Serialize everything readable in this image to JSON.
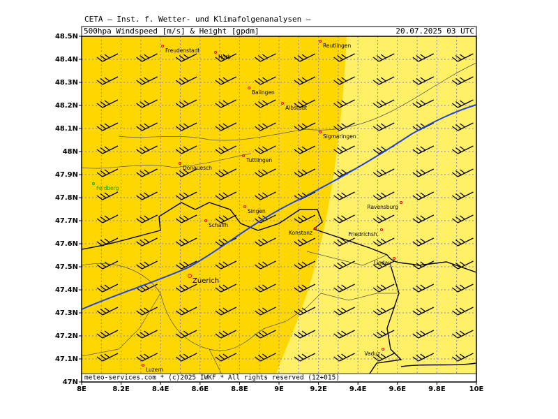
{
  "header": {
    "institute": "CETA — Inst. f. Wetter- und Klimafolgenanalysen —",
    "title": "500hpa Windspeed [m/s] & Height [gpdm]",
    "date": "20.07.2025 03 UTC"
  },
  "footer": "meteo-services.com * (c)2025 IWKF * All rights reserved (12+015)",
  "lon_ticks": [
    "8E",
    "8.2E",
    "8.4E",
    "8.6E",
    "8.8E",
    "9E",
    "9.2E",
    "9.4E",
    "9.6E",
    "9.8E",
    "10E"
  ],
  "lat_ticks": [
    "47N",
    "47.1N",
    "47.2N",
    "47.3N",
    "47.4N",
    "47.5N",
    "47.6N",
    "47.7N",
    "47.8N",
    "47.9N",
    "48N",
    "48.1N",
    "48.2N",
    "48.3N",
    "48.4N",
    "48.5N"
  ],
  "cities": [
    "Freudenstadt",
    "Horb",
    "Reutlingen",
    "Balingen",
    "Albstadt",
    "Sigmaringen",
    "Tuttlingen",
    "Donauesch",
    "Feldberg",
    "Singen",
    "Schaffh",
    "Konstanz",
    "Friedrichsh.",
    "Ravensburg",
    "Lindau",
    "Zuerich",
    "Vaduz",
    "Luzern"
  ]
}
